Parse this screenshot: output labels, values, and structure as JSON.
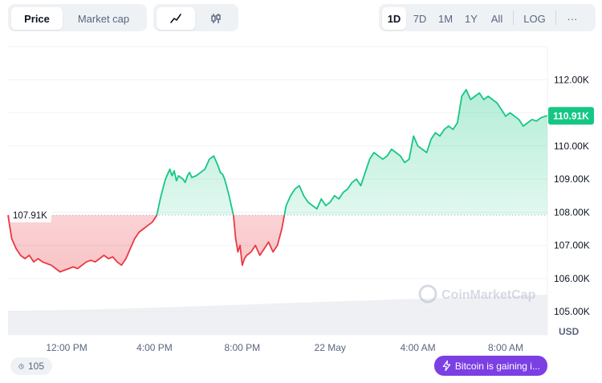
{
  "metric_tabs": [
    {
      "label": "Price",
      "active": true
    },
    {
      "label": "Market cap",
      "active": false
    }
  ],
  "chart_type_tabs": [
    {
      "icon": "line-chart-icon",
      "active": true
    },
    {
      "icon": "candlestick-icon",
      "active": false
    }
  ],
  "range_tabs": [
    {
      "label": "1D",
      "active": true
    },
    {
      "label": "7D",
      "active": false
    },
    {
      "label": "1M",
      "active": false
    },
    {
      "label": "1Y",
      "active": false
    },
    {
      "label": "All",
      "active": false
    }
  ],
  "log_label": "LOG",
  "more_label": "···",
  "history_count": "105",
  "news_badge": "Bitcoin is gaining i...",
  "watermark": "CoinMarketCap",
  "colors": {
    "up": "#16c784",
    "down": "#ea3943",
    "grid": "#eff2f5",
    "axis_text": "#58667e",
    "volume": "#e6e8ed",
    "news": "#7b3fe4"
  },
  "chart_data": {
    "type": "line",
    "currency_label": "USD",
    "reference_value": 107.91,
    "reference_label": "107.91K",
    "current_value": 110.91,
    "current_label": "110.91K",
    "ylim": [
      104.3,
      113.0
    ],
    "yticks": [
      {
        "value": 105,
        "label": "105.00K"
      },
      {
        "value": 106,
        "label": "106.00K"
      },
      {
        "value": 107,
        "label": "107.00K"
      },
      {
        "value": 108,
        "label": "108.00K"
      },
      {
        "value": 109,
        "label": "109.00K"
      },
      {
        "value": 110,
        "label": "110.00K"
      },
      {
        "value": 111,
        "label": "111.00K"
      },
      {
        "value": 112,
        "label": "112.00K"
      }
    ],
    "xlim": [
      9.33,
      33.9
    ],
    "xticks": [
      {
        "value": 12,
        "label": "12:00 PM"
      },
      {
        "value": 16,
        "label": "4:00 PM"
      },
      {
        "value": 20,
        "label": "8:00 PM"
      },
      {
        "value": 24,
        "label": "22 May"
      },
      {
        "value": 28,
        "label": "4:00 AM"
      },
      {
        "value": 32,
        "label": "8:00 AM"
      }
    ],
    "x": [
      9.33,
      9.5,
      9.7,
      9.9,
      10.1,
      10.3,
      10.5,
      10.7,
      10.9,
      11.1,
      11.3,
      11.5,
      11.7,
      11.9,
      12.1,
      12.3,
      12.5,
      12.7,
      12.9,
      13.1,
      13.3,
      13.5,
      13.7,
      13.9,
      14.1,
      14.3,
      14.5,
      14.7,
      14.9,
      15.1,
      15.3,
      15.5,
      15.7,
      15.9,
      16.1,
      16.3,
      16.5,
      16.7,
      16.8,
      16.9,
      17.0,
      17.1,
      17.2,
      17.3,
      17.4,
      17.5,
      17.6,
      17.7,
      17.9,
      18.1,
      18.3,
      18.5,
      18.7,
      18.9,
      19.0,
      19.1,
      19.2,
      19.4,
      19.6,
      19.7,
      19.8,
      19.9,
      20.0,
      20.1,
      20.2,
      20.4,
      20.6,
      20.8,
      21.0,
      21.2,
      21.4,
      21.6,
      21.8,
      22.0,
      22.2,
      22.4,
      22.6,
      22.8,
      23.0,
      23.2,
      23.4,
      23.6,
      23.8,
      24.0,
      24.2,
      24.4,
      24.6,
      24.8,
      25.0,
      25.2,
      25.4,
      25.6,
      25.8,
      26.0,
      26.2,
      26.4,
      26.6,
      26.8,
      27.0,
      27.2,
      27.4,
      27.6,
      27.8,
      28.0,
      28.2,
      28.4,
      28.6,
      28.8,
      29.0,
      29.2,
      29.4,
      29.6,
      29.8,
      30.0,
      30.2,
      30.4,
      30.6,
      30.8,
      31.0,
      31.2,
      31.4,
      31.6,
      31.8,
      32.0,
      32.2,
      32.4,
      32.6,
      32.8,
      33.0,
      33.2,
      33.4,
      33.6,
      33.8,
      33.9
    ],
    "y": [
      107.91,
      107.2,
      106.9,
      106.7,
      106.6,
      106.7,
      106.5,
      106.6,
      106.5,
      106.45,
      106.4,
      106.3,
      106.2,
      106.25,
      106.3,
      106.35,
      106.3,
      106.4,
      106.5,
      106.55,
      106.5,
      106.6,
      106.7,
      106.6,
      106.65,
      106.5,
      106.4,
      106.6,
      106.9,
      107.2,
      107.4,
      107.5,
      107.6,
      107.7,
      107.9,
      108.5,
      109.0,
      109.3,
      109.1,
      109.25,
      108.95,
      109.1,
      109.05,
      109.0,
      108.9,
      109.1,
      109.2,
      109.05,
      109.1,
      109.2,
      109.3,
      109.6,
      109.7,
      109.4,
      109.2,
      109.15,
      109.0,
      108.5,
      107.9,
      107.2,
      106.8,
      107.0,
      106.4,
      106.6,
      106.7,
      106.8,
      107.0,
      106.7,
      106.9,
      107.1,
      106.8,
      107.0,
      107.5,
      108.2,
      108.5,
      108.7,
      108.8,
      108.5,
      108.3,
      108.2,
      108.1,
      108.4,
      108.2,
      108.3,
      108.5,
      108.4,
      108.6,
      108.7,
      108.9,
      109.0,
      108.8,
      109.2,
      109.6,
      109.8,
      109.7,
      109.6,
      109.7,
      109.9,
      109.8,
      109.7,
      109.5,
      109.6,
      110.3,
      110.0,
      109.9,
      109.8,
      110.2,
      110.4,
      110.3,
      110.5,
      110.6,
      110.5,
      110.7,
      111.5,
      111.7,
      111.4,
      111.5,
      111.6,
      111.4,
      111.5,
      111.4,
      111.3,
      111.1,
      110.9,
      111.0,
      110.9,
      110.8,
      110.6,
      110.7,
      110.8,
      110.75,
      110.85,
      110.9,
      110.91
    ]
  }
}
